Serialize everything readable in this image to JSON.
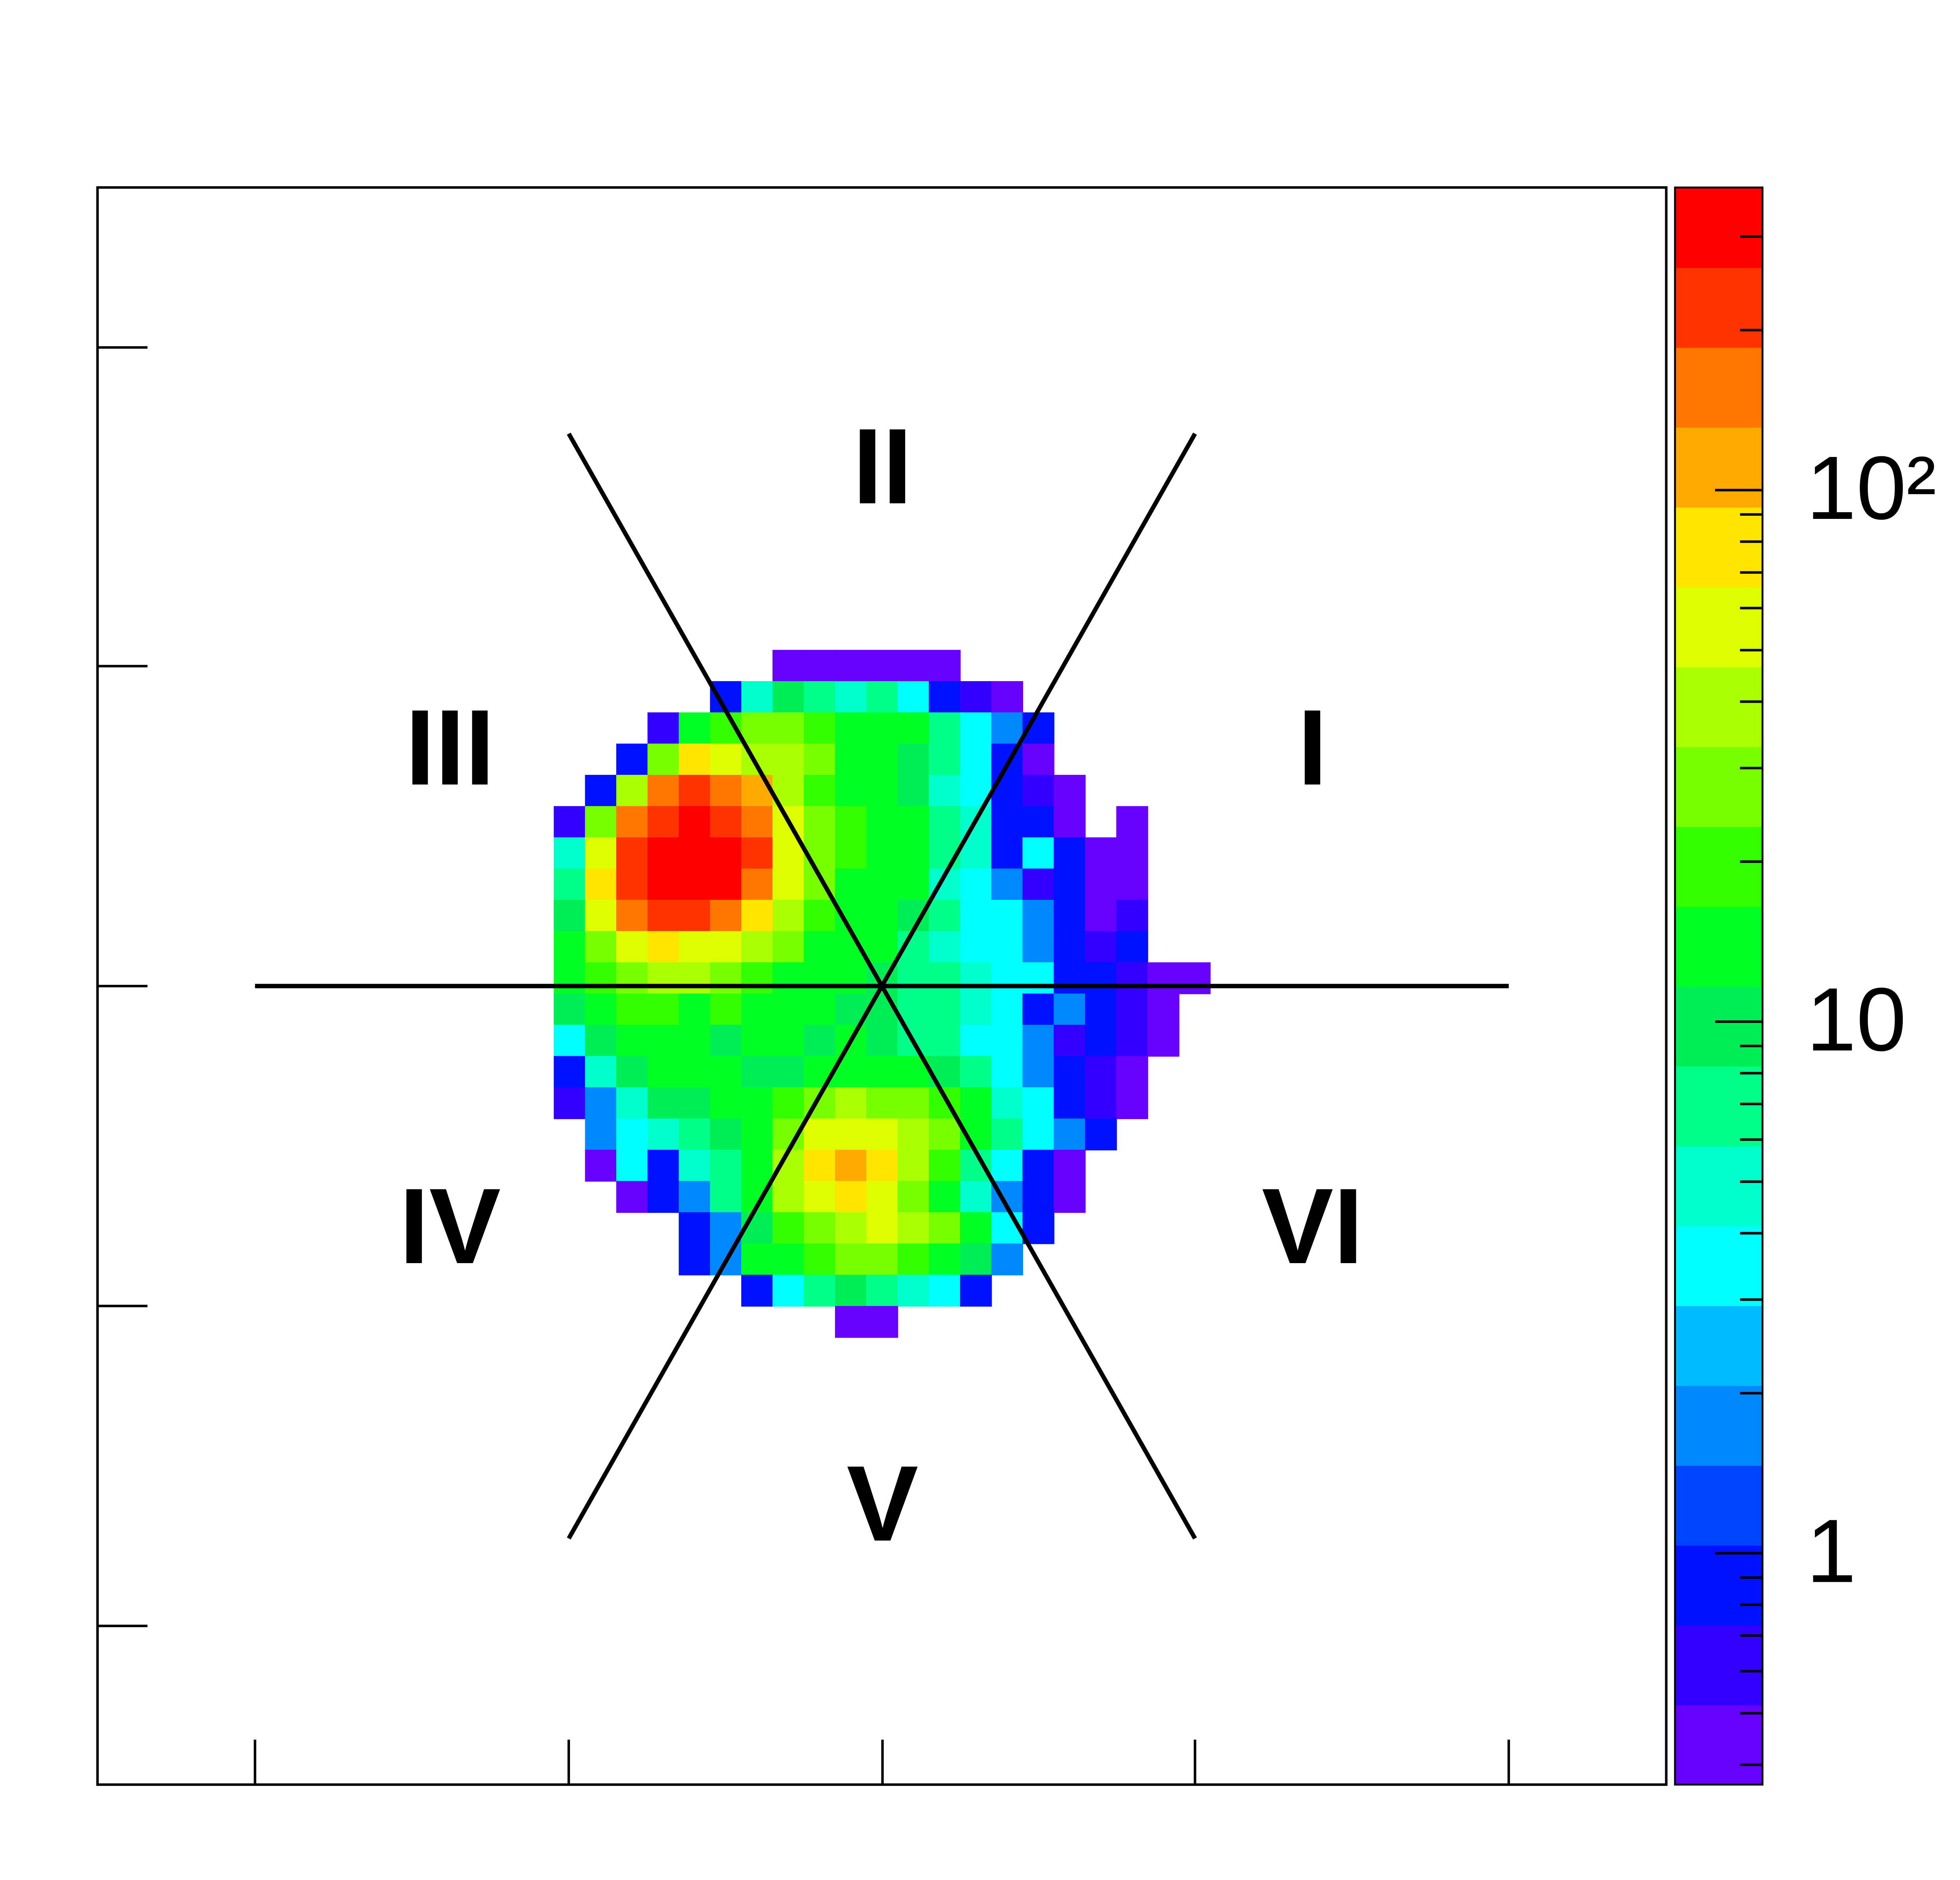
{
  "chart_data": {
    "type": "heatmap",
    "annotations": [
      "I",
      "II",
      "III",
      "IV",
      "V",
      "VI"
    ],
    "log_z": true,
    "zlim": [
      0.367,
      371
    ],
    "zticks": [
      1,
      10,
      {
        "value": 100,
        "label": "10²"
      }
    ],
    "zminor_ticks": [
      0.4,
      0.5,
      0.6,
      0.7,
      0.8,
      0.9,
      2,
      3,
      4,
      5,
      6,
      7,
      8,
      9,
      20,
      30,
      40,
      50,
      60,
      70,
      80,
      90,
      200,
      300
    ],
    "colors": [
      "#6600ff",
      "#3300ff",
      "#0011ff",
      "#0044ff",
      "#0088ff",
      "#00bbff",
      "#00ffff",
      "#00ffcc",
      "#00ff88",
      "#00ee55",
      "#00ff22",
      "#33ff00",
      "#77ff00",
      "#aaff00",
      "#ddff00",
      "#ffe600",
      "#ffaa00",
      "#ff7700",
      "#ff3300",
      "#ff0000"
    ],
    "z": [
      [
        null,
        null,
        null,
        null,
        null,
        null,
        null,
        0.5,
        0.5,
        0.5,
        0.5,
        0.5,
        0.5,
        null,
        null,
        null,
        null,
        null,
        null,
        null,
        null
      ],
      [
        null,
        null,
        null,
        null,
        null,
        1,
        5,
        10,
        8,
        5,
        8,
        4,
        1,
        0.6,
        0.5,
        null,
        null,
        null,
        null,
        null,
        null
      ],
      [
        null,
        null,
        null,
        0.6,
        15,
        20,
        25,
        30,
        20,
        15,
        12,
        15,
        8,
        3,
        2,
        1,
        null,
        null,
        null,
        null,
        null
      ],
      [
        null,
        null,
        1,
        30,
        70,
        60,
        45,
        35,
        25,
        15,
        15,
        10,
        8,
        3,
        1,
        0.5,
        null,
        null,
        null,
        null,
        null
      ],
      [
        null,
        1,
        40,
        150,
        200,
        170,
        100,
        40,
        20,
        15,
        12,
        10,
        5,
        3,
        1,
        0.7,
        0.5,
        null,
        null,
        null,
        null
      ],
      [
        0.6,
        30,
        150,
        250,
        300,
        250,
        150,
        50,
        25,
        20,
        15,
        12,
        8,
        5,
        1,
        1,
        0.5,
        null,
        0.5,
        null,
        null
      ],
      [
        5,
        60,
        200,
        300,
        350,
        300,
        200,
        60,
        25,
        20,
        15,
        12,
        8,
        5,
        1,
        3,
        1,
        0.5,
        0.5,
        null,
        null
      ],
      [
        8,
        80,
        200,
        300,
        350,
        300,
        150,
        50,
        25,
        15,
        15,
        12,
        5,
        4,
        2,
        0.7,
        1,
        0.5,
        0.5,
        null,
        null
      ],
      [
        10,
        60,
        150,
        200,
        200,
        150,
        70,
        40,
        20,
        15,
        15,
        10,
        6,
        4,
        3,
        2,
        1,
        0.5,
        0.6,
        null,
        null
      ],
      [
        15,
        30,
        60,
        80,
        60,
        50,
        40,
        25,
        15,
        12,
        12,
        6,
        5,
        3,
        4,
        2,
        1,
        0.7,
        1,
        null,
        null
      ],
      [
        15,
        20,
        30,
        35,
        40,
        30,
        20,
        15,
        12,
        12,
        10,
        8,
        6,
        5,
        4,
        3,
        1,
        1,
        0.7,
        0.5,
        0.5
      ],
      [
        10,
        15,
        20,
        20,
        15,
        20,
        15,
        12,
        12,
        10,
        10,
        8,
        6,
        5,
        3,
        1,
        2,
        1,
        0.7,
        0.5,
        null
      ],
      [
        3,
        10,
        15,
        15,
        12,
        10,
        12,
        15,
        10,
        12,
        10,
        8,
        6,
        4,
        3,
        2,
        0.7,
        1,
        0.7,
        0.5,
        null
      ],
      [
        1,
        5,
        10,
        12,
        12,
        12,
        10,
        10,
        12,
        15,
        15,
        12,
        10,
        8,
        3,
        2,
        1,
        0.6,
        0.5,
        null,
        null
      ],
      [
        0.7,
        2,
        5,
        10,
        10,
        12,
        15,
        20,
        30,
        35,
        30,
        25,
        20,
        12,
        5,
        3,
        1,
        0.6,
        0.5,
        null,
        null
      ],
      [
        null,
        2,
        3,
        5,
        8,
        10,
        15,
        30,
        60,
        60,
        50,
        40,
        30,
        15,
        6,
        3,
        2,
        1,
        null,
        null,
        null
      ],
      [
        null,
        0.5,
        3,
        1,
        5,
        8,
        15,
        40,
        70,
        100,
        80,
        40,
        20,
        8,
        3,
        1,
        0.5,
        null,
        null,
        null,
        null
      ],
      [
        null,
        null,
        0.5,
        1,
        2,
        8,
        15,
        40,
        60,
        70,
        60,
        30,
        15,
        5,
        2,
        1,
        0.5,
        null,
        null,
        null,
        null
      ],
      [
        null,
        null,
        null,
        null,
        1,
        2,
        10,
        20,
        30,
        40,
        50,
        40,
        30,
        15,
        3,
        1,
        null,
        null,
        null,
        null,
        null
      ],
      [
        null,
        null,
        null,
        null,
        0.8,
        2,
        12,
        15,
        20,
        25,
        25,
        20,
        15,
        10,
        2,
        null,
        null,
        null,
        null,
        null,
        null
      ],
      [
        null,
        null,
        null,
        null,
        null,
        null,
        1,
        3,
        8,
        10,
        8,
        5,
        3,
        1,
        null,
        null,
        null,
        null,
        null,
        null,
        null
      ],
      [
        null,
        null,
        null,
        null,
        null,
        null,
        null,
        null,
        null,
        0.5,
        0.5,
        null,
        null,
        null,
        null,
        null,
        null,
        null,
        null,
        null,
        null
      ]
    ]
  }
}
